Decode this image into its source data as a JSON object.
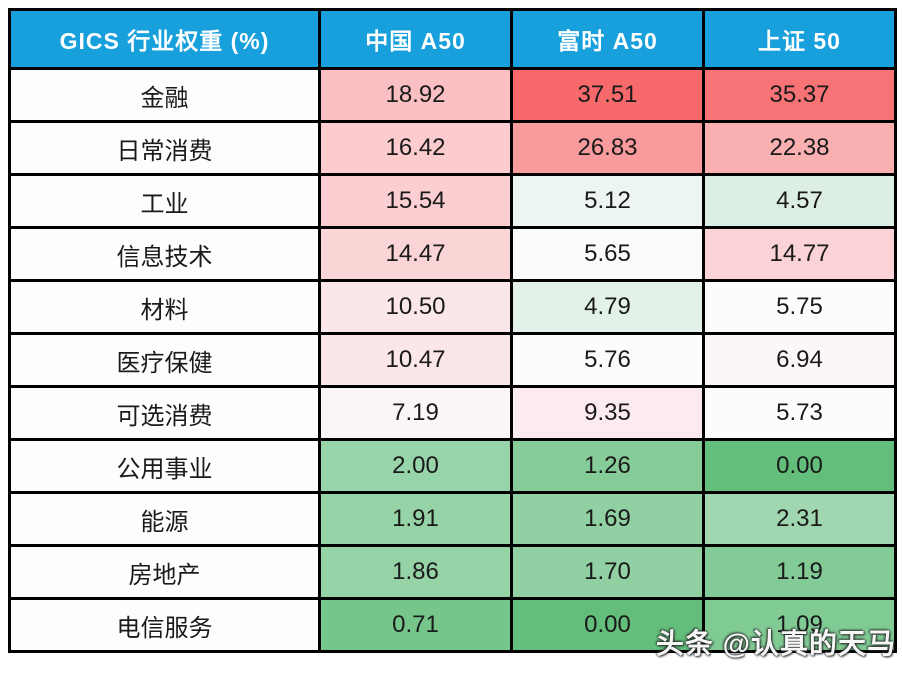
{
  "chart_data": {
    "type": "table",
    "title": "GICS 行业权重 (%)",
    "columns": [
      "中国 A50",
      "富时 A50",
      "上证 50"
    ],
    "rows": [
      {
        "sector": "金融",
        "values": [
          18.92,
          37.51,
          35.37
        ]
      },
      {
        "sector": "日常消费",
        "values": [
          16.42,
          26.83,
          22.38
        ]
      },
      {
        "sector": "工业",
        "values": [
          15.54,
          5.12,
          4.57
        ]
      },
      {
        "sector": "信息技术",
        "values": [
          14.47,
          5.65,
          14.77
        ]
      },
      {
        "sector": "材料",
        "values": [
          10.5,
          4.79,
          5.75
        ]
      },
      {
        "sector": "医疗保健",
        "values": [
          10.47,
          5.76,
          6.94
        ]
      },
      {
        "sector": "可选消费",
        "values": [
          7.19,
          9.35,
          5.73
        ]
      },
      {
        "sector": "公用事业",
        "values": [
          2.0,
          1.26,
          0.0
        ]
      },
      {
        "sector": "能源",
        "values": [
          1.91,
          1.69,
          2.31
        ]
      },
      {
        "sector": "房地产",
        "values": [
          1.86,
          1.7,
          1.19
        ]
      },
      {
        "sector": "电信服务",
        "values": [
          0.71,
          0.0,
          1.09
        ]
      }
    ],
    "heatmap_scale": {
      "min_value": 0.0,
      "mid_value": 5.73,
      "max_value": 37.51,
      "min_color": "#63BE7B",
      "mid_color": "#FCFCFF",
      "max_color": "#F8696B"
    },
    "layout": {
      "header_bg": "#18A0DC",
      "header_text_color": "#FFFFFF",
      "border_color": "#000000",
      "value_decimals": 2
    }
  },
  "watermark": {
    "text": "头条 @认真的天马"
  }
}
